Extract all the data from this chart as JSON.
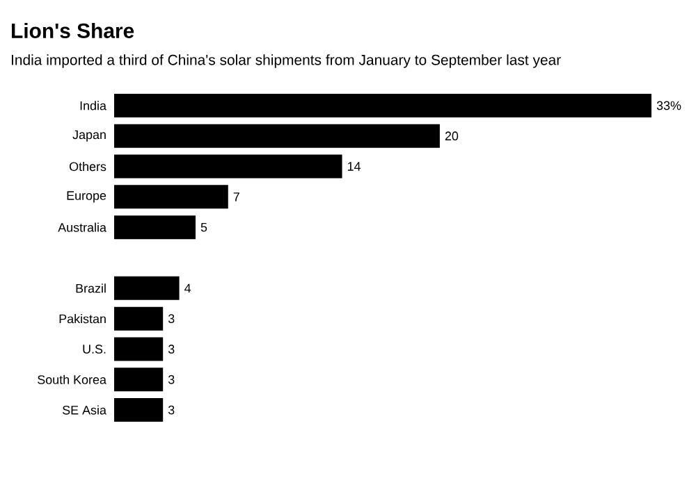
{
  "chart_data": {
    "type": "bar",
    "orientation": "horizontal",
    "title": "Lion's Share",
    "subtitle": "India imported a third of China's solar shipments from January to September last year",
    "categories": [
      "India",
      "Japan",
      "Others",
      "Europe",
      "Australia",
      null,
      "Brazil",
      "Pakistan",
      "U.S.",
      "South Korea",
      "SE Asia"
    ],
    "values": [
      33,
      20,
      14,
      7,
      5,
      null,
      4,
      3,
      3,
      3,
      3
    ],
    "value_labels": [
      "33%",
      "20",
      "14",
      "7",
      "5",
      null,
      "4",
      "3",
      "3",
      "3",
      "3"
    ],
    "color": "#000000"
  }
}
